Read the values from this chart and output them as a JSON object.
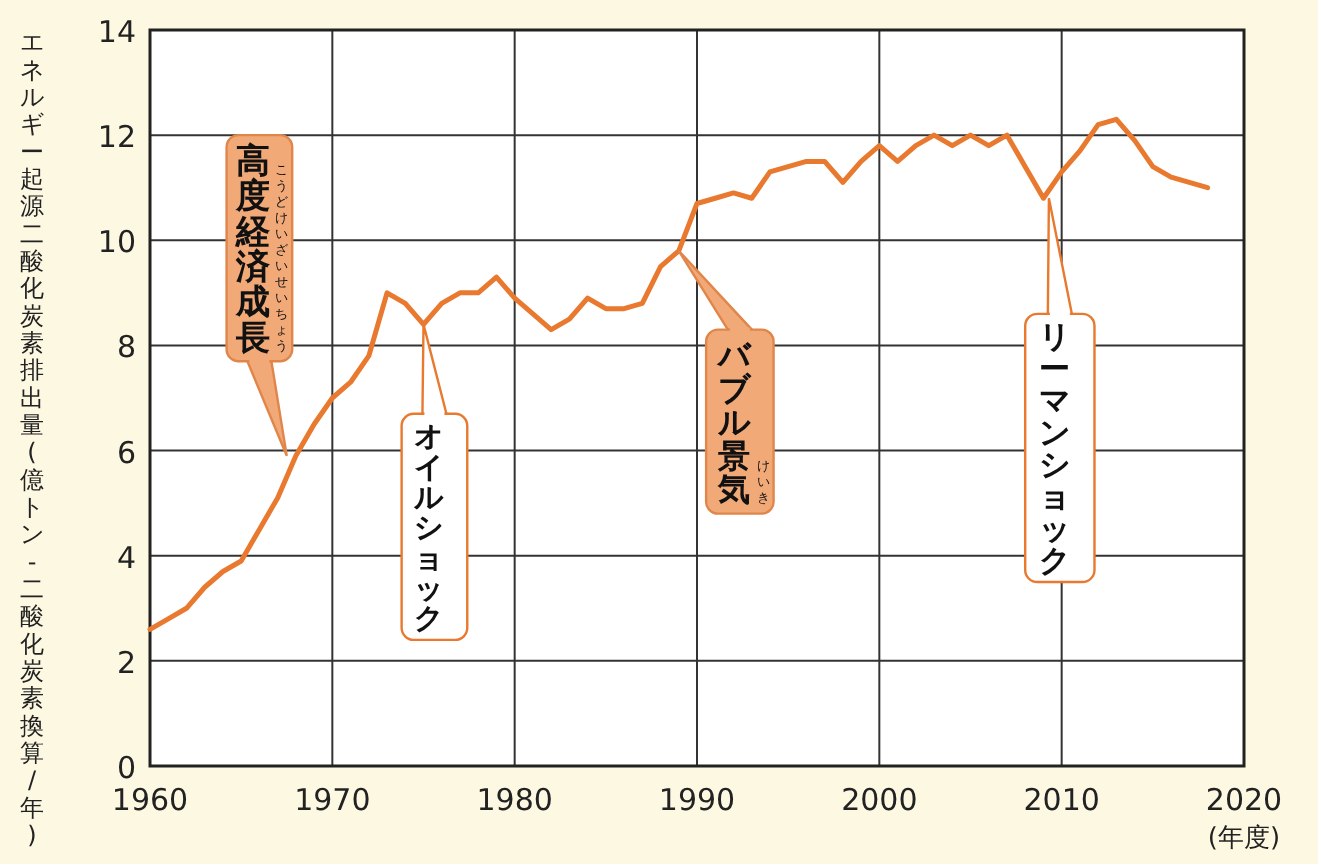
{
  "chart_data": {
    "type": "line",
    "ylabel": "エネルギー起源二酸化炭素排出量(億トン-二酸化炭素換算/年)",
    "xlabel": "(年度)",
    "x": [
      1960,
      1961,
      1962,
      1963,
      1964,
      1965,
      1966,
      1967,
      1968,
      1969,
      1970,
      1971,
      1972,
      1973,
      1974,
      1975,
      1976,
      1977,
      1978,
      1979,
      1980,
      1981,
      1982,
      1983,
      1984,
      1985,
      1986,
      1987,
      1988,
      1989,
      1990,
      1991,
      1992,
      1993,
      1994,
      1995,
      1996,
      1997,
      1998,
      1999,
      2000,
      2001,
      2002,
      2003,
      2004,
      2005,
      2006,
      2007,
      2008,
      2009,
      2010,
      2011,
      2012,
      2013,
      2014,
      2015,
      2016,
      2017,
      2018
    ],
    "series": [
      {
        "color": "#e8792f",
        "values": [
          2.6,
          2.8,
          3.0,
          3.4,
          3.7,
          3.9,
          4.5,
          5.1,
          5.9,
          6.5,
          7.0,
          7.3,
          7.8,
          9.0,
          8.8,
          8.4,
          8.8,
          9.0,
          9.0,
          9.3,
          8.9,
          8.6,
          8.3,
          8.5,
          8.9,
          8.7,
          8.7,
          8.8,
          9.5,
          9.8,
          10.7,
          10.8,
          10.9,
          10.8,
          11.3,
          11.4,
          11.5,
          11.5,
          11.1,
          11.5,
          11.8,
          11.5,
          11.8,
          12.0,
          11.8,
          12.0,
          11.8,
          12.0,
          11.4,
          10.8,
          11.3,
          11.7,
          12.2,
          12.3,
          11.9,
          11.4,
          11.2,
          11.1,
          11.0
        ]
      }
    ],
    "xlim": [
      1960,
      2020
    ],
    "xticks": [
      1960,
      1970,
      1980,
      1990,
      2000,
      2010,
      2020
    ],
    "ylim": [
      0,
      14
    ],
    "yticks": [
      0,
      2,
      4,
      6,
      8,
      10,
      12,
      14
    ],
    "grid": true,
    "marker": "none",
    "annotations": [
      {
        "text": "高度経済成長",
        "x": 1967.5,
        "y": 5.9
      },
      "こうどけいざいせいちょう",
      {
        "text": "オイルショック",
        "x": 1975,
        "y": 8.4
      },
      {
        "text": "バブル景気",
        "x": 1989,
        "y": 9.8
      },
      "けいき",
      {
        "text": "リーマンショック",
        "x": 2009.3,
        "y": 10.8
      }
    ]
  }
}
